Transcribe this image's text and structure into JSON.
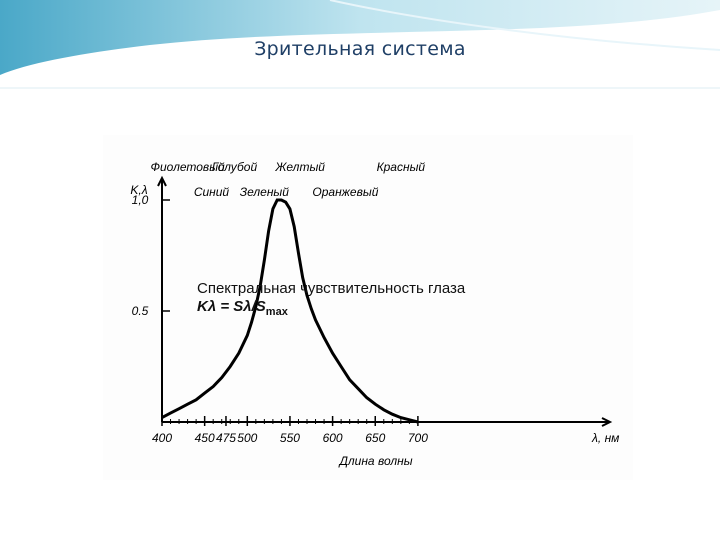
{
  "slide": {
    "title": "Зрительная система"
  },
  "chart_data": {
    "type": "line",
    "xlabel": "Длина волны",
    "xunit": "λ, нм",
    "ylabel": "K,λ",
    "xlim": [
      400,
      715
    ],
    "ylim": [
      0,
      1.1
    ],
    "x_ticks": [
      400,
      450,
      475,
      500,
      550,
      600,
      650,
      700
    ],
    "y_ticks": [
      {
        "value": 0.5,
        "label": "0.5"
      },
      {
        "value": 1.0,
        "label": "1,0"
      }
    ],
    "color_labels_top": [
      {
        "text": "Фиолетовый",
        "x": 430
      },
      {
        "text": "Голубой",
        "x": 485
      },
      {
        "text": "Желтый",
        "x": 562
      },
      {
        "text": "Красный",
        "x": 680
      }
    ],
    "color_labels_bottom": [
      {
        "text": "Синий",
        "x": 458
      },
      {
        "text": "Зеленый",
        "x": 520
      },
      {
        "text": "Оранжевый",
        "x": 615
      }
    ],
    "annotation": {
      "line1": "Спектральная чувствительность глаза",
      "line2": "Kλ = Sλ/S",
      "subscript": "max"
    },
    "series": [
      {
        "x": [
          400,
          410,
          420,
          430,
          440,
          450,
          460,
          470,
          480,
          490,
          500,
          505,
          510,
          515,
          520,
          525,
          530,
          535,
          540,
          545,
          550,
          555,
          560,
          565,
          570,
          575,
          580,
          590,
          600,
          610,
          620,
          630,
          640,
          650,
          660,
          670,
          680,
          690,
          700
        ],
        "values": [
          0.02,
          0.04,
          0.06,
          0.08,
          0.1,
          0.13,
          0.16,
          0.2,
          0.25,
          0.31,
          0.39,
          0.45,
          0.52,
          0.61,
          0.73,
          0.86,
          0.96,
          1.0,
          1.0,
          0.99,
          0.96,
          0.88,
          0.76,
          0.65,
          0.57,
          0.51,
          0.46,
          0.38,
          0.31,
          0.25,
          0.19,
          0.15,
          0.11,
          0.08,
          0.055,
          0.035,
          0.02,
          0.01,
          0.0
        ]
      }
    ]
  }
}
